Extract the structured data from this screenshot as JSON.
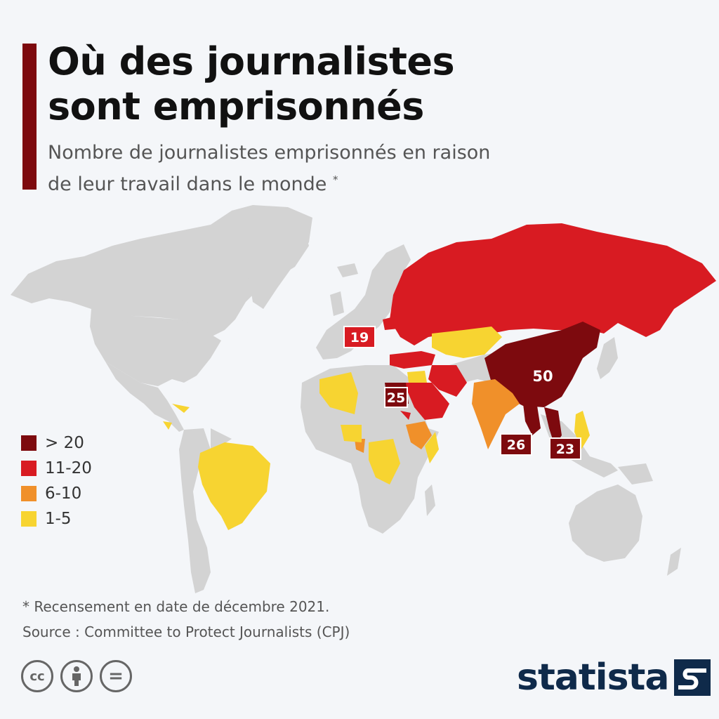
{
  "header": {
    "title_line1": "Où des journalistes",
    "title_line2": "sont emprisonnés",
    "subtitle_line1": "Nombre de journalistes emprisonnés en raison",
    "subtitle_line2": "de leur travail dans le monde",
    "subtitle_marker": "*"
  },
  "map": {
    "colors": {
      "gt20": "#7d0a0e",
      "c11_20": "#d81b22",
      "c6_10": "#f0902a",
      "c1_5": "#f7d431",
      "none": "#d3d3d3"
    },
    "labels": [
      {
        "country": "Biélorussie",
        "value": "19"
      },
      {
        "country": "Égypte",
        "value": "25"
      },
      {
        "country": "Chine",
        "value": "50"
      },
      {
        "country": "Myanmar",
        "value": "26"
      },
      {
        "country": "Vietnam",
        "value": "23"
      }
    ]
  },
  "legend": [
    {
      "label": "> 20",
      "color": "#7d0a0e"
    },
    {
      "label": "11-20",
      "color": "#d81b22"
    },
    {
      "label": "6-10",
      "color": "#f0902a"
    },
    {
      "label": "1-5",
      "color": "#f7d431"
    }
  ],
  "footer": {
    "note": "* Recensement en date de décembre 2021.",
    "source": "Source : Committee to Protect Journalists (CPJ)",
    "cc_symbol": "cc",
    "eq_symbol": "="
  },
  "brand": {
    "name": "statista"
  }
}
